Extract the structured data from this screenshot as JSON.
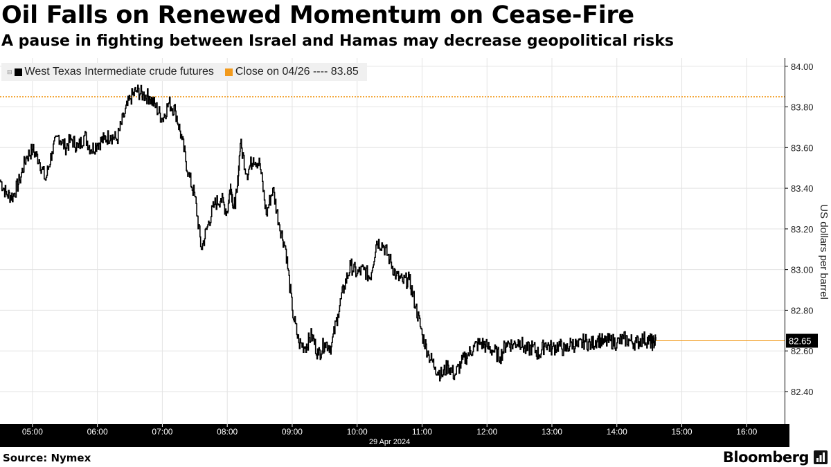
{
  "header": {
    "title": "Oil Falls on Renewed Momentum on Cease-Fire",
    "subtitle": "A pause in fighting between Israel and Hamas may decrease geopolitical risks"
  },
  "footer": {
    "source": "Source: Nymex",
    "brand": "Bloomberg"
  },
  "colors": {
    "series": "#000000",
    "reference": "#f29a1c",
    "axis_bar": "#000000",
    "legend_bg": "#f0f0f0",
    "grid": "#e3e3e3"
  },
  "chart_data": {
    "type": "line",
    "xlabel": "29 Apr 2024",
    "ylabel": "US dollars per barrel",
    "x_ticks": [
      "05:00",
      "06:00",
      "07:00",
      "08:00",
      "09:00",
      "10:00",
      "11:00",
      "12:00",
      "13:00",
      "14:00",
      "15:00",
      "16:00"
    ],
    "y_ticks": [
      "82.40",
      "82.60",
      "82.80",
      "83.00",
      "83.20",
      "83.40",
      "83.60",
      "83.80",
      "84.00"
    ],
    "ylim": [
      82.24,
      84.04
    ],
    "xlim": [
      "04:30",
      "16:35"
    ],
    "grid": true,
    "legend_placement": "top-left",
    "series": [
      {
        "name": "West Texas Intermediate crude futures",
        "x": [
          "04:30",
          "04:36",
          "04:42",
          "04:48",
          "04:54",
          "05:00",
          "05:06",
          "05:12",
          "05:18",
          "05:24",
          "05:30",
          "05:36",
          "05:42",
          "05:48",
          "05:54",
          "06:00",
          "06:06",
          "06:12",
          "06:18",
          "06:24",
          "06:30",
          "06:36",
          "06:42",
          "06:48",
          "06:54",
          "07:00",
          "07:06",
          "07:12",
          "07:18",
          "07:24",
          "07:30",
          "07:36",
          "07:42",
          "07:48",
          "07:54",
          "08:00",
          "08:03",
          "08:06",
          "08:09",
          "08:12",
          "08:18",
          "08:24",
          "08:30",
          "08:36",
          "08:42",
          "08:48",
          "08:54",
          "09:00",
          "09:06",
          "09:12",
          "09:18",
          "09:24",
          "09:30",
          "09:36",
          "09:42",
          "09:48",
          "09:54",
          "10:00",
          "10:06",
          "10:12",
          "10:18",
          "10:24",
          "10:30",
          "10:36",
          "10:42",
          "10:48",
          "10:54",
          "11:00",
          "11:06",
          "11:12",
          "11:18",
          "11:24",
          "11:30",
          "11:36",
          "11:42",
          "11:48",
          "11:54",
          "12:00",
          "12:06",
          "12:12",
          "12:18",
          "12:24",
          "12:30",
          "12:36",
          "12:42",
          "12:48",
          "12:54",
          "13:00",
          "13:06",
          "13:12",
          "13:18",
          "13:24",
          "13:30",
          "13:36",
          "13:42",
          "13:48",
          "13:54",
          "14:00",
          "14:06",
          "14:12",
          "14:18",
          "14:24",
          "14:30",
          "14:33",
          "14:36"
        ],
        "values": [
          83.44,
          83.37,
          83.36,
          83.44,
          83.55,
          83.59,
          83.54,
          83.44,
          83.58,
          83.66,
          83.6,
          83.64,
          83.6,
          83.66,
          83.59,
          83.62,
          83.64,
          83.66,
          83.64,
          83.75,
          83.84,
          83.88,
          83.86,
          83.85,
          83.8,
          83.74,
          83.82,
          83.78,
          83.64,
          83.47,
          83.36,
          83.1,
          83.22,
          83.32,
          83.35,
          83.28,
          83.42,
          83.3,
          83.38,
          83.62,
          83.47,
          83.55,
          83.52,
          83.27,
          83.4,
          83.22,
          83.1,
          82.8,
          82.64,
          82.62,
          82.68,
          82.58,
          82.64,
          82.62,
          82.78,
          82.92,
          83.02,
          82.98,
          83.0,
          82.96,
          83.14,
          83.12,
          83.05,
          82.97,
          82.94,
          82.95,
          82.82,
          82.68,
          82.58,
          82.52,
          82.48,
          82.53,
          82.48,
          82.54,
          82.58,
          82.62,
          82.64,
          82.62,
          82.6,
          82.57,
          82.64,
          82.63,
          82.65,
          82.6,
          82.62,
          82.58,
          82.64,
          82.61,
          82.63,
          82.6,
          82.64,
          82.62,
          82.65,
          82.63,
          82.66,
          82.64,
          82.65,
          82.64,
          82.66,
          82.65,
          82.64,
          82.66,
          82.65,
          82.64,
          82.65
        ]
      },
      {
        "name": "Close on 04/26 ---- 83.85",
        "value": 83.85
      }
    ],
    "last_value_label": "82.65"
  }
}
